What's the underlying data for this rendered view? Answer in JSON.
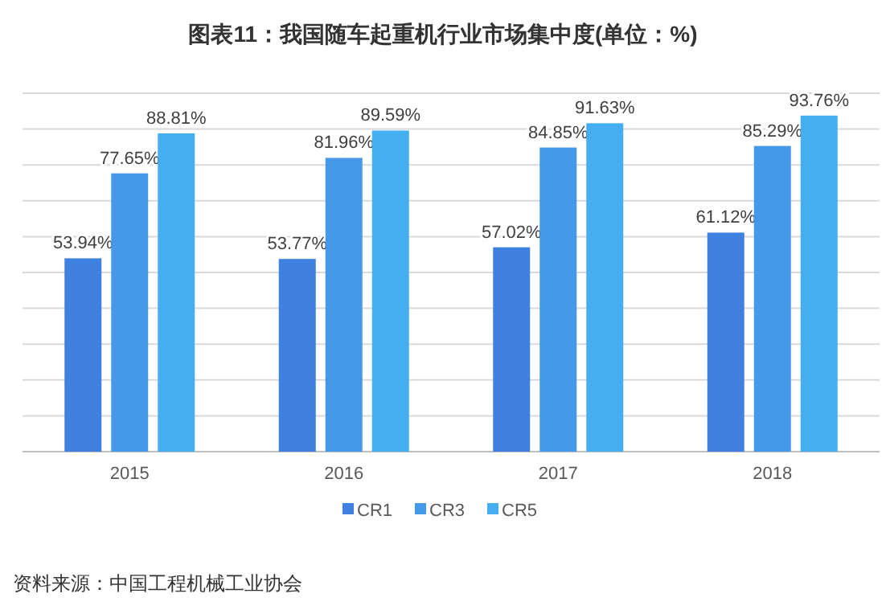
{
  "chart_data": {
    "type": "bar",
    "title": "图表11：我国随车起重机行业市场集中度(单位：%)",
    "categories": [
      "2015",
      "2016",
      "2017",
      "2018"
    ],
    "series": [
      {
        "name": "CR1",
        "color": "#3f80e0",
        "values": [
          53.94,
          53.77,
          57.02,
          61.12
        ],
        "value_labels": [
          "53.94%",
          "53.77%",
          "57.02%",
          "61.12%"
        ]
      },
      {
        "name": "CR3",
        "color": "#4599e8",
        "values": [
          77.65,
          81.96,
          84.85,
          85.29
        ],
        "value_labels": [
          "77.65%",
          "81.96%",
          "84.85%",
          "85.29%"
        ]
      },
      {
        "name": "CR5",
        "color": "#45aef0",
        "values": [
          88.81,
          89.59,
          91.63,
          93.76
        ],
        "value_labels": [
          "88.81%",
          "89.59%",
          "91.63%",
          "93.76%"
        ]
      }
    ],
    "grid": "y",
    "tick_labels": "x",
    "legend": "bottom",
    "annotations": [
      "资料来源：中国工程机械工业协会"
    ]
  }
}
